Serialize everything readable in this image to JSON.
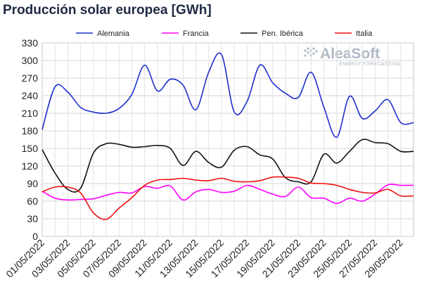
{
  "chart_data": {
    "type": "line",
    "title": "Producción solar europea [GWh]",
    "xlabel": "",
    "ylabel": "",
    "ylim": [
      0,
      330
    ],
    "yticks": [
      0,
      30,
      60,
      90,
      120,
      150,
      180,
      210,
      240,
      270,
      300,
      330
    ],
    "x": [
      "01/05/2022",
      "02/05/2022",
      "03/05/2022",
      "04/05/2022",
      "05/05/2022",
      "06/05/2022",
      "07/05/2022",
      "08/05/2022",
      "09/05/2022",
      "10/05/2022",
      "11/05/2022",
      "12/05/2022",
      "13/05/2022",
      "14/05/2022",
      "15/05/2022",
      "16/05/2022",
      "17/05/2022",
      "18/05/2022",
      "19/05/2022",
      "20/05/2022",
      "21/05/2022",
      "22/05/2022",
      "23/05/2022",
      "24/05/2022",
      "25/05/2022",
      "26/05/2022",
      "27/05/2022",
      "28/05/2022",
      "29/05/2022",
      "30/05/2022"
    ],
    "xtick_labels": [
      "01/05/2022",
      "03/05/2022",
      "05/05/2022",
      "07/05/2022",
      "09/05/2022",
      "11/05/2022",
      "13/05/2022",
      "15/05/2022",
      "17/05/2022",
      "19/05/2022",
      "21/05/2022",
      "23/05/2022",
      "25/05/2022",
      "27/05/2022",
      "29/05/2022"
    ],
    "grid": true,
    "legend_position": "top",
    "series": [
      {
        "name": "Alemania",
        "color": "#1f2fcc",
        "values": [
          182,
          255,
          246,
          220,
          212,
          210,
          218,
          242,
          292,
          248,
          268,
          258,
          216,
          280,
          310,
          212,
          230,
          292,
          262,
          244,
          237,
          280,
          220,
          169,
          239,
          201,
          214,
          233,
          194,
          194
        ]
      },
      {
        "name": "Francia",
        "color": "#ff00ff",
        "values": [
          77,
          65,
          62,
          63,
          64,
          70,
          75,
          74,
          85,
          82,
          86,
          62,
          76,
          80,
          75,
          77,
          87,
          80,
          72,
          68,
          84,
          66,
          65,
          56,
          65,
          60,
          72,
          88,
          87,
          87
        ]
      },
      {
        "name": "Pen. Ibérica",
        "color": "#111111",
        "values": [
          148,
          108,
          80,
          82,
          142,
          158,
          157,
          152,
          153,
          155,
          150,
          121,
          145,
          126,
          118,
          147,
          153,
          139,
          132,
          100,
          93,
          93,
          140,
          125,
          145,
          165,
          160,
          158,
          145,
          145
        ]
      },
      {
        "name": "Italia",
        "color": "#ee1111",
        "values": [
          76,
          84,
          84,
          74,
          40,
          29,
          48,
          66,
          87,
          96,
          97,
          99,
          96,
          95,
          99,
          94,
          93,
          95,
          101,
          101,
          99,
          91,
          90,
          87,
          80,
          75,
          74,
          80,
          69,
          69
        ]
      }
    ]
  },
  "logo": {
    "name": "AleaSoft",
    "tagline": "ENERGY FORECASTING",
    "color": "#aeb8c4"
  }
}
